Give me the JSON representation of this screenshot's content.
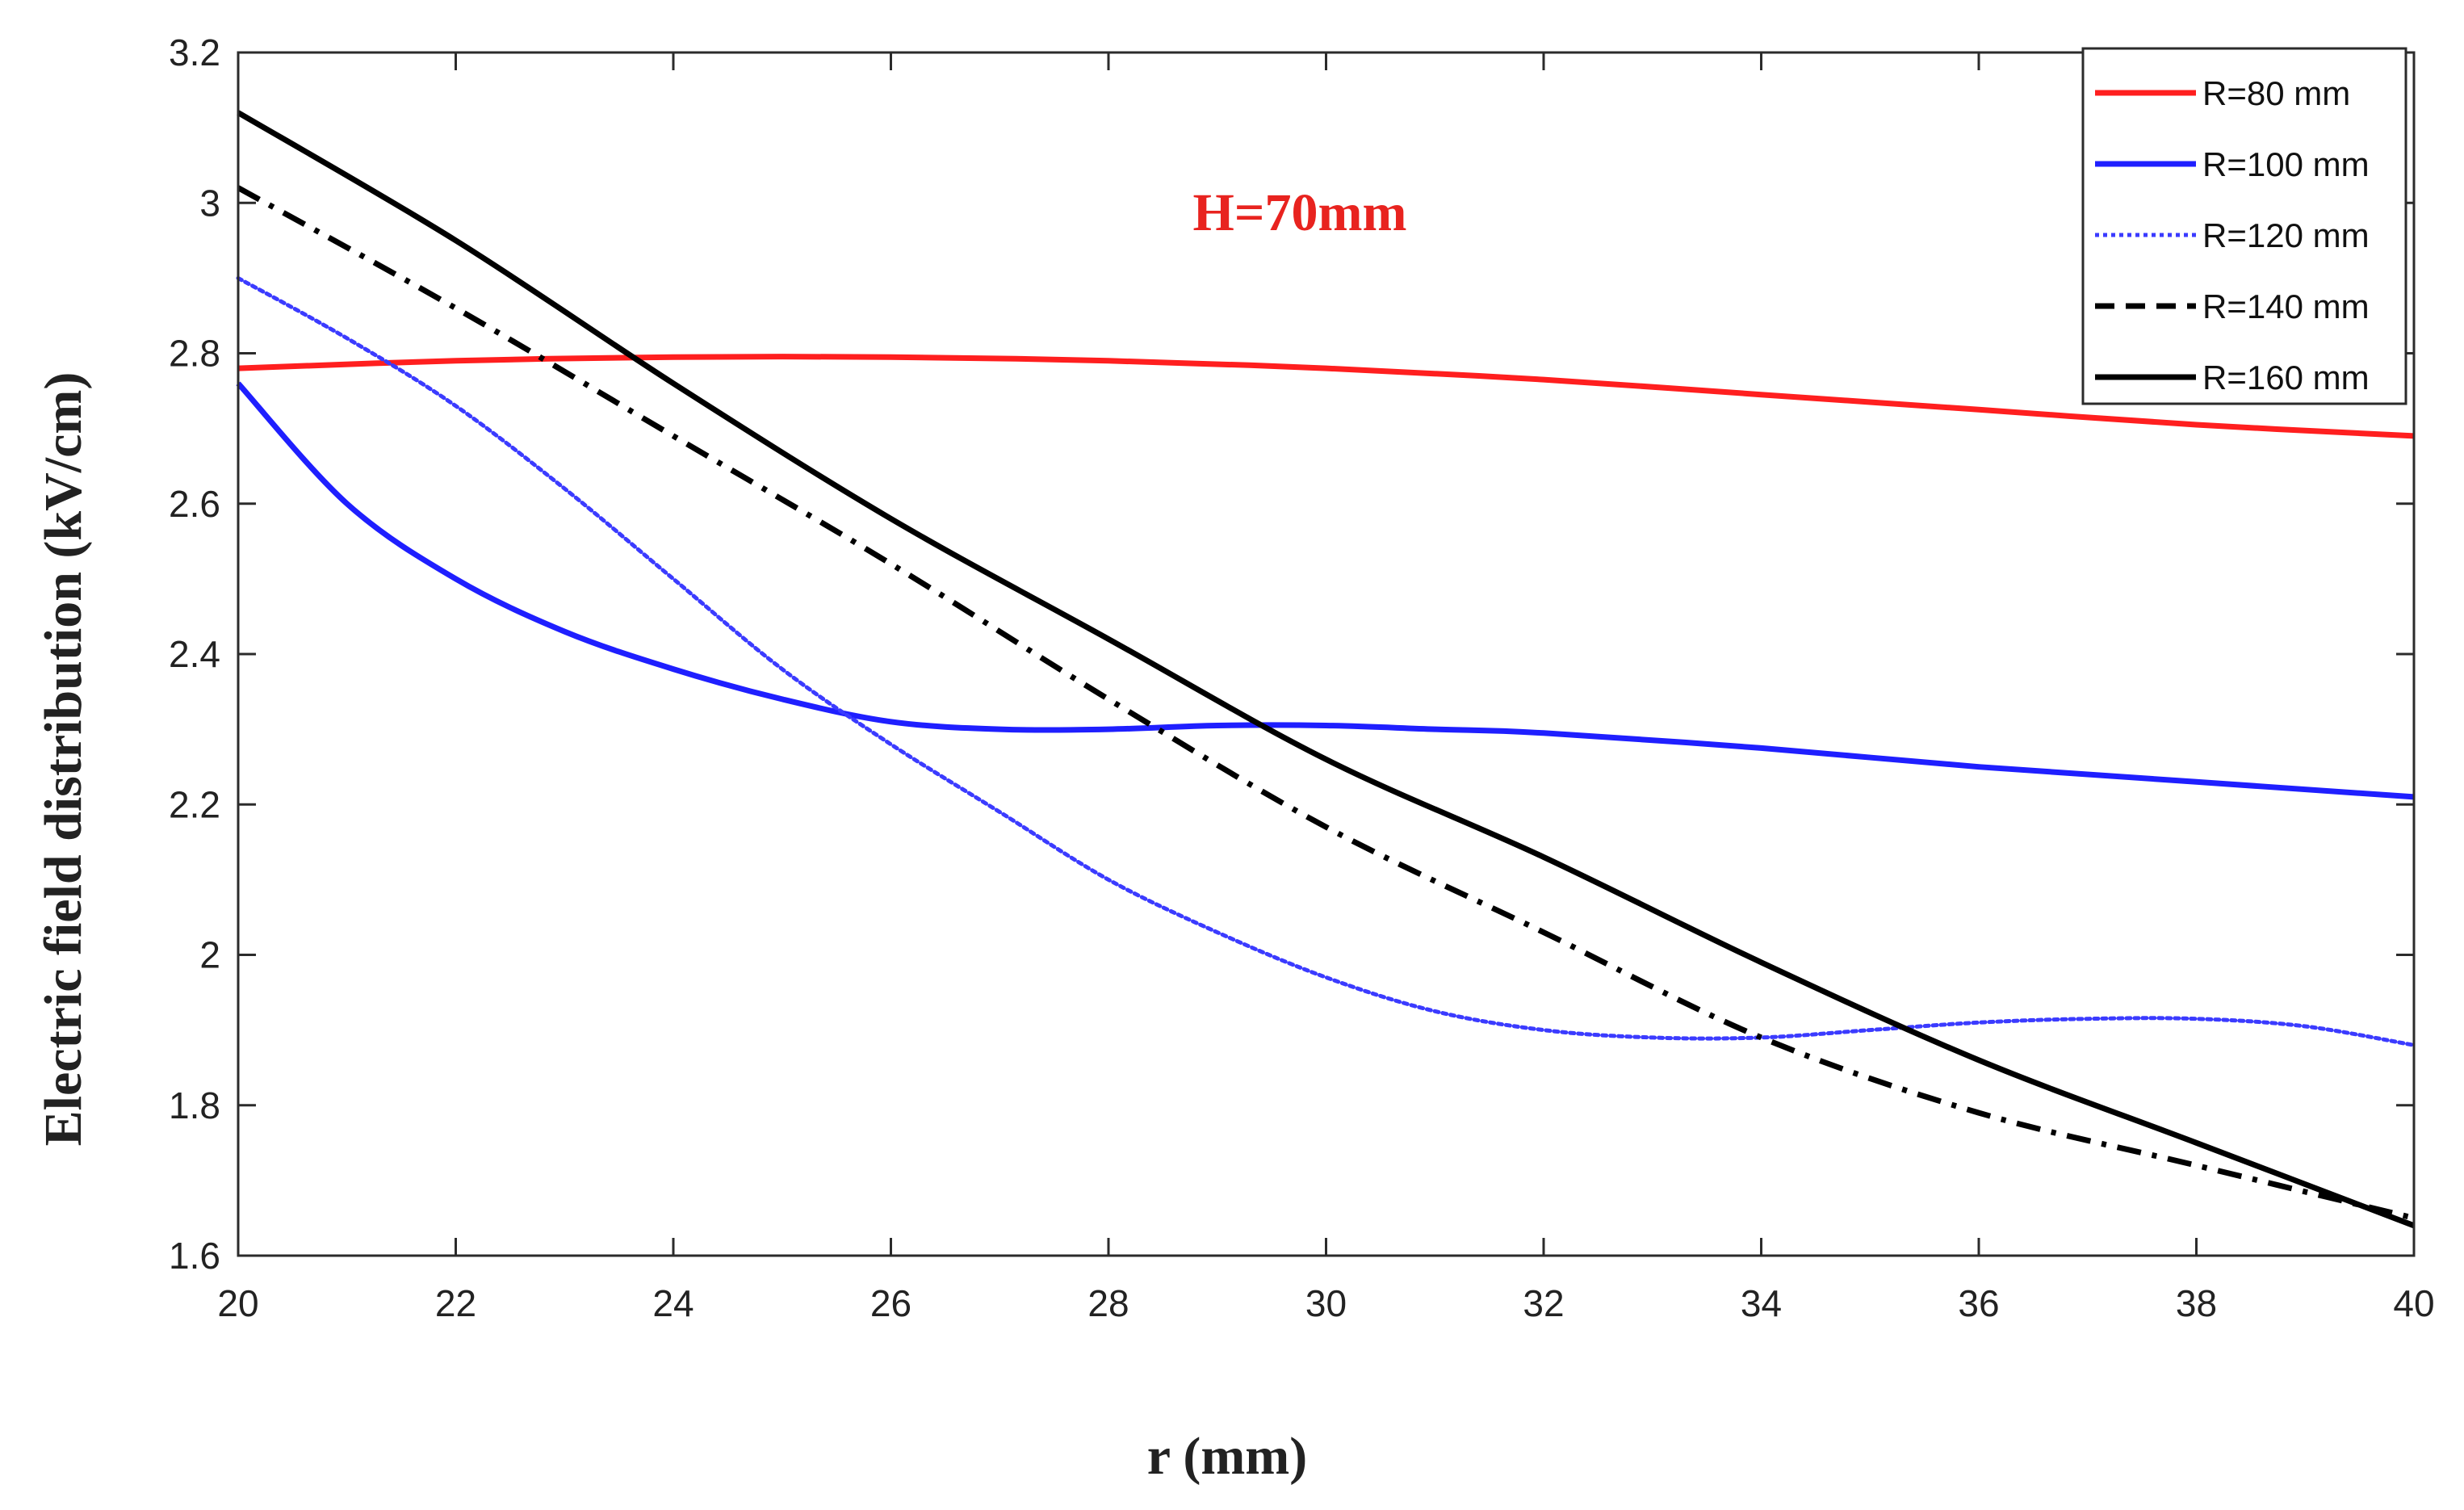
{
  "chart_data": {
    "type": "line",
    "xlabel": "r (mm)",
    "ylabel": "Electric field distribution (kV/cm)",
    "annotation": "H=70mm",
    "xlim": [
      20,
      40
    ],
    "ylim": [
      1.6,
      3.2
    ],
    "xticks": [
      "20",
      "22",
      "24",
      "26",
      "28",
      "30",
      "32",
      "34",
      "36",
      "38",
      "40"
    ],
    "yticks": [
      "1.6",
      "1.8",
      "2",
      "2.2",
      "2.4",
      "2.6",
      "2.8",
      "3",
      "3.2"
    ],
    "grid": false,
    "legend_position": "top-right",
    "series": [
      {
        "name": "R=80 mm",
        "color": "#ff1f1f",
        "dash": "solid",
        "x": [
          20,
          22,
          24,
          26,
          28,
          30,
          32,
          34,
          36,
          38,
          40
        ],
        "y": [
          2.78,
          2.79,
          2.795,
          2.795,
          2.79,
          2.78,
          2.765,
          2.745,
          2.725,
          2.705,
          2.69
        ]
      },
      {
        "name": "R=100 mm",
        "color": "#1f1fff",
        "dash": "solid",
        "x": [
          20,
          21,
          22,
          23,
          24,
          25,
          26,
          27,
          28,
          29,
          30,
          31,
          32,
          34,
          36,
          38,
          40
        ],
        "y": [
          2.76,
          2.6,
          2.5,
          2.43,
          2.38,
          2.34,
          2.31,
          2.3,
          2.3,
          2.305,
          2.305,
          2.3,
          2.295,
          2.275,
          2.25,
          2.23,
          2.21
        ]
      },
      {
        "name": "R=120 mm",
        "color": "#3b3bff",
        "dash": "dotted",
        "x": [
          20,
          21,
          22,
          23,
          24,
          25,
          26,
          27,
          28,
          29,
          30,
          31,
          32,
          33,
          34,
          35,
          36,
          37,
          38,
          39,
          40
        ],
        "y": [
          2.9,
          2.82,
          2.73,
          2.62,
          2.5,
          2.38,
          2.28,
          2.19,
          2.1,
          2.03,
          1.97,
          1.925,
          1.9,
          1.89,
          1.89,
          1.9,
          1.91,
          1.915,
          1.915,
          1.905,
          1.88
        ]
      },
      {
        "name": "R=140 mm",
        "color": "#000000",
        "dash": "dashdot",
        "x": [
          20,
          22,
          24,
          26,
          28,
          30,
          32,
          34,
          36,
          38,
          40
        ],
        "y": [
          3.02,
          2.86,
          2.69,
          2.52,
          2.34,
          2.17,
          2.03,
          1.89,
          1.79,
          1.72,
          1.65
        ]
      },
      {
        "name": "R=160 mm",
        "color": "#000000",
        "dash": "solid",
        "x": [
          20,
          22,
          24,
          26,
          28,
          30,
          32,
          34,
          36,
          38,
          40
        ],
        "y": [
          3.12,
          2.95,
          2.76,
          2.58,
          2.42,
          2.26,
          2.13,
          1.99,
          1.86,
          1.75,
          1.64
        ]
      }
    ]
  }
}
